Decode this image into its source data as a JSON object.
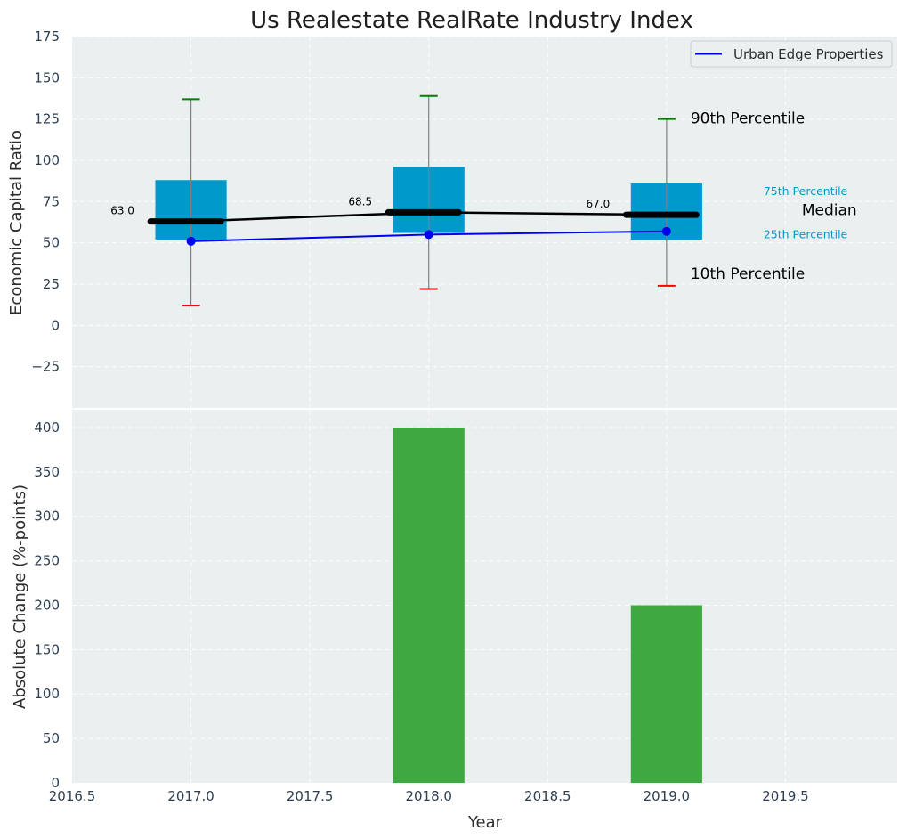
{
  "chart_data": [
    {
      "type": "box",
      "title": "Us Realestate RealRate Industry Index",
      "ylabel": "Economic Capital Ratio",
      "ylim": [
        -50,
        175
      ],
      "yticks": [
        -25,
        0,
        25,
        50,
        75,
        100,
        125,
        150,
        175
      ],
      "ytick_labels": [
        "−25",
        "0",
        "25",
        "50",
        "75",
        "100",
        "125",
        "150",
        "175"
      ],
      "grid": true,
      "x": [
        2017,
        2018,
        2019
      ],
      "boxes": [
        {
          "year": 2017,
          "p10": 12,
          "p25": 52,
          "median": 63.0,
          "p75": 88,
          "p90": 137,
          "median_label": "63.0"
        },
        {
          "year": 2018,
          "p10": 22,
          "p25": 56,
          "median": 68.5,
          "p75": 96,
          "p90": 139,
          "median_label": "68.5"
        },
        {
          "year": 2019,
          "p10": 24,
          "p25": 52,
          "median": 67.0,
          "p75": 86,
          "p90": 125,
          "median_label": "67.0"
        }
      ],
      "series": [
        {
          "name": "Urban Edge Properties",
          "x": [
            2017,
            2018,
            2019
          ],
          "values": [
            51,
            55,
            57
          ],
          "color": "#0000ee"
        }
      ],
      "legend": {
        "placement": "top-right",
        "entries": [
          "Urban Edge Properties"
        ]
      },
      "annotations": {
        "p90": "90th Percentile",
        "p75": "75th Percentile",
        "median": "Median",
        "p25": "25th Percentile",
        "p10": "10th Percentile"
      },
      "colors": {
        "box": "#0099cc",
        "median": "#000000",
        "p90_cap": "#008000",
        "p10_cap": "#ff0000",
        "whisker": "#808080",
        "background": "#eaeff0"
      }
    },
    {
      "type": "bar",
      "xlabel": "Year",
      "ylabel": "Absolute Change (%-points)",
      "ylim": [
        0,
        420
      ],
      "xlim": [
        2016.5,
        2019.97
      ],
      "yticks": [
        0,
        50,
        100,
        150,
        200,
        250,
        300,
        350,
        400
      ],
      "xticks": [
        2016.5,
        2017.0,
        2017.5,
        2018.0,
        2018.5,
        2019.0,
        2019.5
      ],
      "xtick_labels": [
        "2016.5",
        "2017.0",
        "2017.5",
        "2018.0",
        "2018.5",
        "2019.0",
        "2019.5"
      ],
      "grid": true,
      "x": [
        2018,
        2019
      ],
      "values": [
        400,
        200
      ],
      "bar_width": 0.3,
      "color": "#2ca02c"
    }
  ]
}
